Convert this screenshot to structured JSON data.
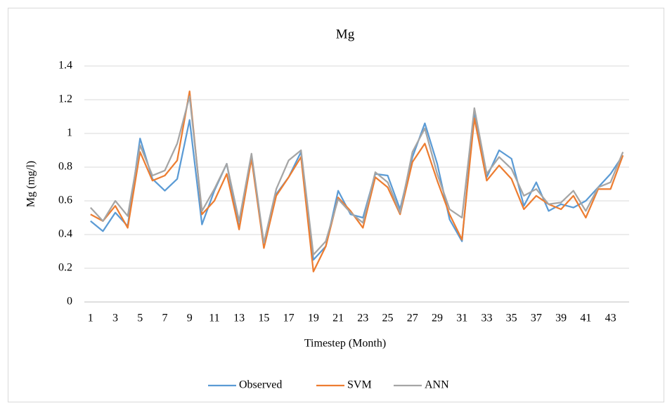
{
  "chart_data": {
    "type": "line",
    "title": "Mg",
    "x_label": "Timestep (Month)",
    "y_label": "Mg (mg/l)",
    "categories": [
      1,
      null,
      3,
      null,
      5,
      null,
      7,
      null,
      9,
      null,
      11,
      null,
      13,
      null,
      15,
      null,
      17,
      null,
      19,
      null,
      21,
      null,
      23,
      null,
      25,
      null,
      27,
      null,
      29,
      null,
      31,
      null,
      33,
      null,
      35,
      null,
      37,
      null,
      39,
      null,
      41,
      null,
      43,
      null
    ],
    "series": [
      {
        "name": "Observed",
        "color": "#5b9bd5",
        "values": [
          0.48,
          0.42,
          0.53,
          0.45,
          0.97,
          0.73,
          0.66,
          0.73,
          1.08,
          0.46,
          0.66,
          0.82,
          0.44,
          0.87,
          0.33,
          0.64,
          0.74,
          0.89,
          0.25,
          0.33,
          0.66,
          0.52,
          0.5,
          0.76,
          0.75,
          0.55,
          0.86,
          1.06,
          0.82,
          0.49,
          0.36,
          1.13,
          0.74,
          0.9,
          0.85,
          0.57,
          0.71,
          0.54,
          0.58,
          0.56,
          0.6,
          0.68,
          0.76,
          0.87
        ]
      },
      {
        "name": "SVM",
        "color": "#ed7d31",
        "values": [
          0.52,
          0.48,
          0.57,
          0.44,
          0.89,
          0.72,
          0.75,
          0.84,
          1.25,
          0.52,
          0.6,
          0.76,
          0.43,
          0.85,
          0.32,
          0.63,
          0.74,
          0.86,
          0.18,
          0.33,
          0.62,
          0.54,
          0.44,
          0.74,
          0.68,
          0.52,
          0.83,
          0.94,
          0.72,
          0.52,
          0.37,
          1.09,
          0.72,
          0.81,
          0.73,
          0.55,
          0.63,
          0.58,
          0.55,
          0.63,
          0.5,
          0.67,
          0.67,
          0.87
        ]
      },
      {
        "name": "ANN",
        "color": "#a5a5a5",
        "values": [
          0.56,
          0.48,
          0.6,
          0.51,
          0.93,
          0.75,
          0.78,
          0.94,
          1.22,
          0.54,
          0.67,
          0.82,
          0.48,
          0.88,
          0.35,
          0.67,
          0.84,
          0.9,
          0.28,
          0.36,
          0.61,
          0.53,
          0.47,
          0.77,
          0.71,
          0.53,
          0.89,
          1.03,
          0.76,
          0.55,
          0.5,
          1.15,
          0.76,
          0.86,
          0.79,
          0.63,
          0.67,
          0.58,
          0.59,
          0.66,
          0.54,
          0.68,
          0.71,
          0.89
        ]
      }
    ],
    "ylim": [
      0,
      1.4
    ],
    "yticks": [
      0,
      0.2,
      0.4,
      0.6,
      0.8,
      1,
      1.2,
      1.4
    ],
    "grid": true,
    "legend": "bottom"
  }
}
